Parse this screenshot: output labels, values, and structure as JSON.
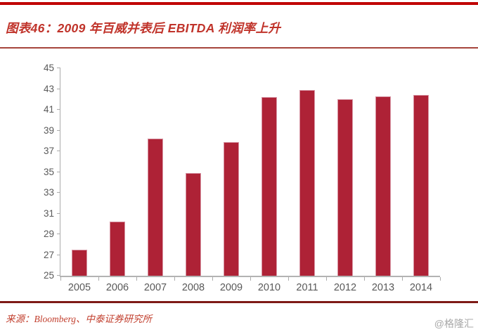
{
  "figure": {
    "title": "图表46：2009 年百威并表后 EBITDA 利润率上升"
  },
  "chart_data": {
    "type": "bar",
    "title": "图表46：2009 年百威并表后 EBITDA 利润率上升",
    "categories": [
      "2005",
      "2006",
      "2007",
      "2008",
      "2009",
      "2010",
      "2011",
      "2012",
      "2013",
      "2014"
    ],
    "values": [
      27.5,
      30.2,
      38.2,
      34.9,
      37.9,
      42.2,
      42.9,
      42.0,
      42.3,
      42.4
    ],
    "xlabel": "",
    "ylabel": "",
    "ylim": [
      25,
      45
    ],
    "ytick_step": 2,
    "yticks": [
      25,
      27,
      29,
      31,
      33,
      35,
      37,
      39,
      41,
      43,
      45
    ],
    "grid": false,
    "legend": null,
    "bar_color": "#AE2236"
  },
  "footer": {
    "source": "来源：Bloomberg、中泰证券研究所",
    "watermark": "@格隆汇"
  },
  "colors": {
    "top_border_red": "#C00000",
    "title_red": "#C0332A",
    "title_underline": "#A6453C",
    "bar_fill": "#AE2236",
    "bar_edge": "#D794A3",
    "footer_divider_dark_red": "#7E1A16",
    "axis_gray": "#ABABAB",
    "tick_text_gray": "#595959",
    "source_red": "#C2402F",
    "watermark_gray": "#A8A8A8"
  }
}
